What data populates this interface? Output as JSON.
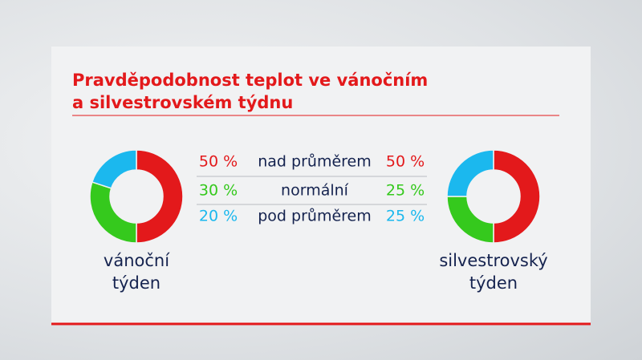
{
  "chart_data": {
    "type": "pie",
    "title": "Pravděpodobnost teplot ve vánočním\na silvestrovském týdnu",
    "categories": [
      "nad průměrem",
      "normální",
      "pod průměrem"
    ],
    "colors": [
      "#e3191b",
      "#35c91d",
      "#1bb8ee"
    ],
    "series": [
      {
        "name": "vánoční\ntýden",
        "values": [
          50,
          30,
          20
        ],
        "value_labels": [
          "50 %",
          "30 %",
          "20 %"
        ]
      },
      {
        "name": "silvestrovský\ntýden",
        "values": [
          50,
          25,
          25
        ],
        "value_labels": [
          "50 %",
          "25 %",
          "25 %"
        ]
      }
    ]
  }
}
